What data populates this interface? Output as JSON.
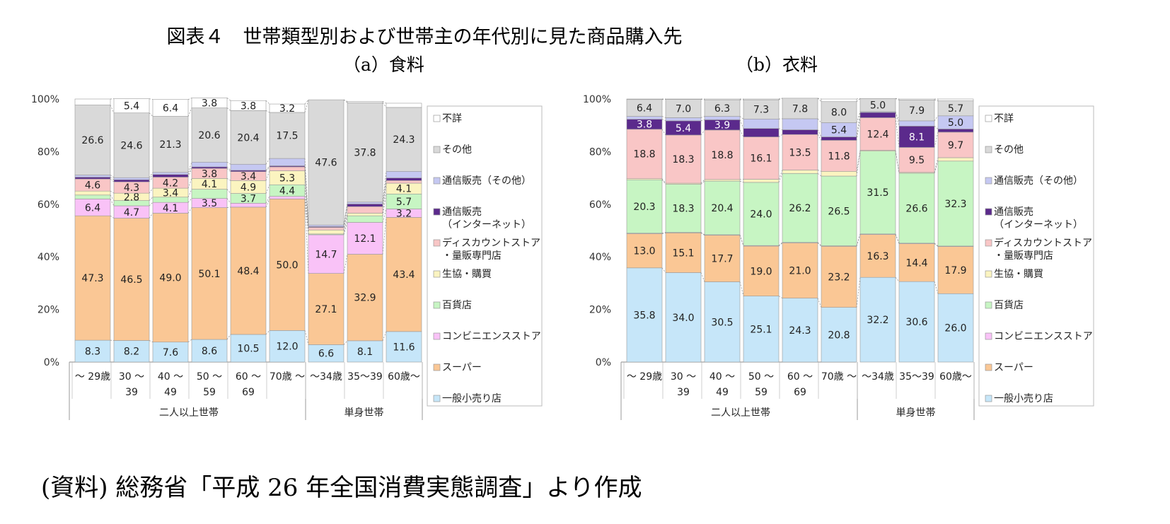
{
  "title": "図表４　世帯類型別および世帯主の年代別に見た商品購入先",
  "subtitle_a": "（a）食料",
  "subtitle_b": "（b）衣料",
  "source": "(資料) 総務省「平成 26 年全国消費実態調査」より作成",
  "legend": [
    {
      "name": "不詳",
      "color": "#ffffff"
    },
    {
      "name": "その他",
      "color": "#d9d9d9"
    },
    {
      "name": "通信販売（その他）",
      "color": "#c5c8f2"
    },
    {
      "name": "通信販売\n（インターネット）",
      "color": "#5b2a8c"
    },
    {
      "name": "ディスカウントストア\n・量販専門店",
      "color": "#f9c6c6"
    },
    {
      "name": "生協・購買",
      "color": "#fbf4c0"
    },
    {
      "name": "百貨店",
      "color": "#c7f5c3"
    },
    {
      "name": "コンビニエンスストア",
      "color": "#f9c2f7"
    },
    {
      "name": "スーパー",
      "color": "#fac795"
    },
    {
      "name": "一般小売り店",
      "color": "#c6e6f9"
    }
  ],
  "chart_data": [
    {
      "type": "bar",
      "stacked": true,
      "percent": true,
      "ylim": [
        0,
        100
      ],
      "yticks": [
        "0%",
        "20%",
        "40%",
        "60%",
        "80%",
        "100%"
      ],
      "categories": [
        "～ 29歳",
        "30 ～\n39",
        "40 ～\n49",
        "50 ～\n59",
        "60 ～\n69",
        "70歳 ～",
        "～34歳",
        "35～39",
        "60歳～"
      ],
      "groups": [
        {
          "label": "二人以上世帯",
          "count": 6
        },
        {
          "label": "単身世帯",
          "count": 3
        }
      ],
      "series": [
        {
          "name": "一般小売り店",
          "values": [
            8.3,
            8.2,
            7.6,
            8.6,
            10.5,
            12.0,
            6.6,
            8.1,
            11.6
          ],
          "labels": [
            "8.3",
            "8.2",
            "7.6",
            "8.6",
            "10.5",
            "12.0",
            "6.6",
            "8.1",
            "11.6"
          ]
        },
        {
          "name": "スーパー",
          "values": [
            47.3,
            46.5,
            49.0,
            50.1,
            48.4,
            50.0,
            27.1,
            32.9,
            43.4
          ],
          "labels": [
            "47.3",
            "46.5",
            "49.0",
            "50.1",
            "48.4",
            "50.0",
            "27.1",
            "32.9",
            "43.4"
          ]
        },
        {
          "name": "コンビニエンスストア",
          "values": [
            6.4,
            4.7,
            4.1,
            3.5,
            1.5,
            1.0,
            14.7,
            12.1,
            3.2
          ],
          "labels": [
            "6.4",
            "4.7",
            "4.1",
            "3.5",
            "",
            "",
            "14.7",
            "12.1",
            "3.2"
          ]
        },
        {
          "name": "百貨店",
          "values": [
            1.5,
            2.0,
            2.0,
            3.5,
            3.7,
            4.4,
            0.3,
            2.5,
            5.7
          ],
          "labels": [
            "",
            "",
            "",
            "",
            "3.7",
            "4.4",
            "",
            "",
            "5.7"
          ]
        },
        {
          "name": "生協・購買",
          "values": [
            1.5,
            2.8,
            3.4,
            4.1,
            4.9,
            5.3,
            1.5,
            1.0,
            4.1
          ],
          "labels": [
            "",
            "2.8",
            "3.4",
            "4.1",
            "4.9",
            "5.3",
            "",
            "",
            "4.1"
          ]
        },
        {
          "name": "ディスカウントストア\n・量販専門店",
          "values": [
            4.6,
            4.3,
            4.2,
            3.8,
            3.4,
            1.5,
            1.0,
            2.5,
            1.0
          ],
          "labels": [
            "4.6",
            "4.3",
            "4.2",
            "3.8",
            "3.4",
            "",
            "",
            "",
            ""
          ]
        },
        {
          "name": "通信販売\n（インターネット）",
          "values": [
            0.7,
            0.8,
            1.0,
            0.6,
            0.5,
            0.4,
            0.3,
            1.0,
            1.0
          ],
          "labels": [
            "",
            "",
            "",
            "",
            "",
            "",
            "",
            "",
            ""
          ]
        },
        {
          "name": "通信販売（その他）",
          "values": [
            0.8,
            0.8,
            0.8,
            1.8,
            2.3,
            2.8,
            0.6,
            0.7,
            2.5
          ],
          "labels": [
            "",
            "",
            "",
            "",
            "",
            "",
            "",
            "",
            ""
          ]
        },
        {
          "name": "その他",
          "values": [
            26.6,
            24.6,
            21.3,
            20.6,
            20.4,
            17.5,
            47.6,
            37.8,
            24.3
          ],
          "labels": [
            "26.6",
            "24.6",
            "21.3",
            "20.6",
            "20.4",
            "17.5",
            "47.6",
            "37.8",
            "24.3"
          ]
        },
        {
          "name": "不詳",
          "values": [
            2.3,
            5.4,
            6.4,
            3.8,
            3.8,
            3.2,
            0.0,
            0.5,
            1.6
          ],
          "labels": [
            "",
            "5.4",
            "6.4",
            "3.8",
            "3.8",
            "3.2",
            "",
            "",
            ""
          ]
        }
      ]
    },
    {
      "type": "bar",
      "stacked": true,
      "percent": true,
      "ylim": [
        0,
        100
      ],
      "yticks": [
        "0%",
        "20%",
        "40%",
        "60%",
        "80%",
        "100%"
      ],
      "categories": [
        "～ 29歳",
        "30 ～\n39",
        "40 ～\n49",
        "50 ～\n59",
        "60 ～\n69",
        "70歳 ～",
        "～34歳",
        "35～39",
        "60歳～"
      ],
      "groups": [
        {
          "label": "二人以上世帯",
          "count": 6
        },
        {
          "label": "単身世帯",
          "count": 3
        }
      ],
      "series": [
        {
          "name": "一般小売り店",
          "values": [
            35.8,
            34.0,
            30.5,
            25.1,
            24.3,
            20.8,
            32.2,
            30.6,
            26.0
          ],
          "labels": [
            "35.8",
            "34.0",
            "30.5",
            "25.1",
            "24.3",
            "20.8",
            "32.2",
            "30.6",
            "26.0"
          ]
        },
        {
          "name": "スーパー",
          "values": [
            13.0,
            15.1,
            17.7,
            19.0,
            21.0,
            23.2,
            16.3,
            14.4,
            17.9
          ],
          "labels": [
            "13.0",
            "15.1",
            "17.7",
            "19.0",
            "21.0",
            "23.2",
            "16.3",
            "14.4",
            "17.9"
          ]
        },
        {
          "name": "コンビニエンスストア",
          "values": [
            0.2,
            0.2,
            0.2,
            0.2,
            0.2,
            0.2,
            0.2,
            0.2,
            0.2
          ],
          "labels": [
            "",
            "",
            "",
            "",
            "",
            "",
            "",
            "",
            ""
          ]
        },
        {
          "name": "百貨店",
          "values": [
            20.3,
            18.3,
            20.4,
            24.0,
            26.2,
            26.5,
            31.5,
            26.6,
            32.3
          ],
          "labels": [
            "20.3",
            "18.3",
            "20.4",
            "24.0",
            "26.2",
            "26.5",
            "31.5",
            "26.6",
            "32.3"
          ]
        },
        {
          "name": "生協・購買",
          "values": [
            0.4,
            0.4,
            0.6,
            1.2,
            1.3,
            1.8,
            0.3,
            0.3,
            1.3
          ],
          "labels": [
            "",
            "",
            "",
            "",
            "",
            "",
            "",
            "",
            ""
          ]
        },
        {
          "name": "ディスカウントストア\n・量販専門店",
          "values": [
            18.8,
            18.3,
            18.8,
            16.1,
            13.5,
            11.8,
            12.4,
            9.5,
            9.7
          ],
          "labels": [
            "18.8",
            "18.3",
            "18.8",
            "16.1",
            "13.5",
            "11.8",
            "12.4",
            "9.5",
            "9.7"
          ]
        },
        {
          "name": "通信販売\n（インターネット）",
          "values": [
            3.8,
            5.4,
            3.9,
            3.2,
            1.8,
            1.3,
            2.0,
            8.1,
            1.2
          ],
          "labels": [
            "3.8",
            "5.4",
            "3.9",
            "",
            "",
            "",
            "",
            "8.1",
            ""
          ]
        },
        {
          "name": "通信販売（その他）",
          "values": [
            1.1,
            1.2,
            1.3,
            3.6,
            4.2,
            5.4,
            0.3,
            2.0,
            5.0
          ],
          "labels": [
            "",
            "",
            "",
            "",
            "",
            "5.4",
            "",
            "",
            "5.0"
          ]
        },
        {
          "name": "その他",
          "values": [
            6.4,
            7.0,
            6.3,
            7.3,
            7.8,
            8.0,
            5.0,
            7.9,
            5.7
          ],
          "labels": [
            "6.4",
            "7.0",
            "6.3",
            "7.3",
            "7.8",
            "8.0",
            "5.0",
            "7.9",
            "5.7"
          ]
        },
        {
          "name": "不詳",
          "values": [
            0.2,
            0.1,
            0.3,
            0.3,
            0.0,
            1.0,
            0.0,
            0.4,
            0.7
          ],
          "labels": [
            "",
            "",
            "",
            "",
            "",
            "",
            "",
            "",
            ""
          ]
        }
      ]
    }
  ]
}
